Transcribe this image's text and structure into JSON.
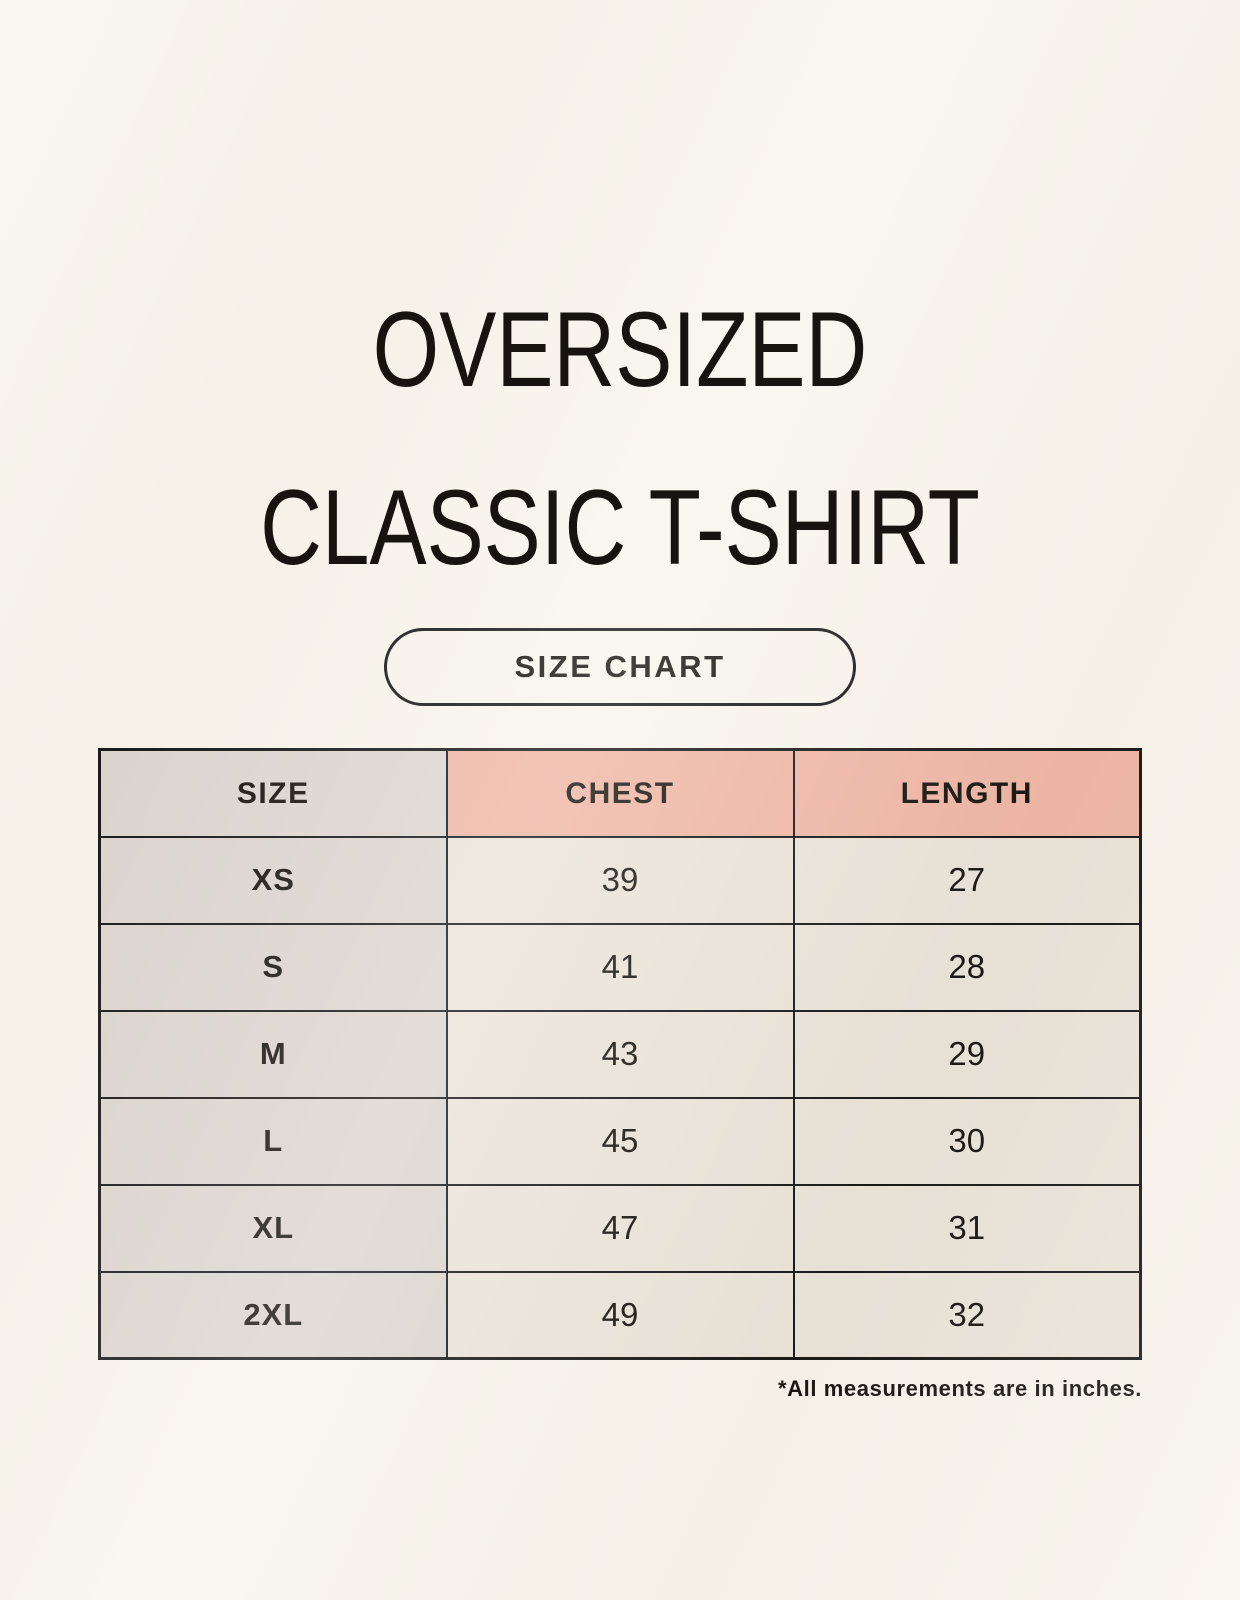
{
  "header": {
    "title_line1": "OVERSIZED",
    "title_line2": "CLASSIC T-SHIRT",
    "badge_label": "SIZE CHART"
  },
  "table": {
    "columns": [
      "SIZE",
      "CHEST",
      "LENGTH"
    ],
    "rows": [
      {
        "size": "XS",
        "chest": "39",
        "length": "27"
      },
      {
        "size": "S",
        "chest": "41",
        "length": "28"
      },
      {
        "size": "M",
        "chest": "43",
        "length": "29"
      },
      {
        "size": "L",
        "chest": "45",
        "length": "30"
      },
      {
        "size": "XL",
        "chest": "47",
        "length": "31"
      },
      {
        "size": "2XL",
        "chest": "49",
        "length": "32"
      }
    ]
  },
  "footnote": "*All measurements are in inches.",
  "colors": {
    "background": "#f8f4ec",
    "header_size_bg": "#dcd6d1",
    "header_measure_bg": "#efb6a5",
    "size_col_bg": "#dcd5d0",
    "value_cell_bg": "#eae3d8",
    "border": "#161616",
    "text": "#17140f"
  },
  "chart_data": {
    "type": "table",
    "title": "OVERSIZED CLASSIC T-SHIRT",
    "subtitle": "SIZE CHART",
    "columns": [
      "SIZE",
      "CHEST",
      "LENGTH"
    ],
    "rows": [
      [
        "XS",
        39,
        27
      ],
      [
        "S",
        41,
        28
      ],
      [
        "M",
        43,
        29
      ],
      [
        "L",
        45,
        30
      ],
      [
        "XL",
        47,
        31
      ],
      [
        "2XL",
        49,
        32
      ]
    ],
    "units": "inches",
    "note": "*All measurements are in inches."
  }
}
